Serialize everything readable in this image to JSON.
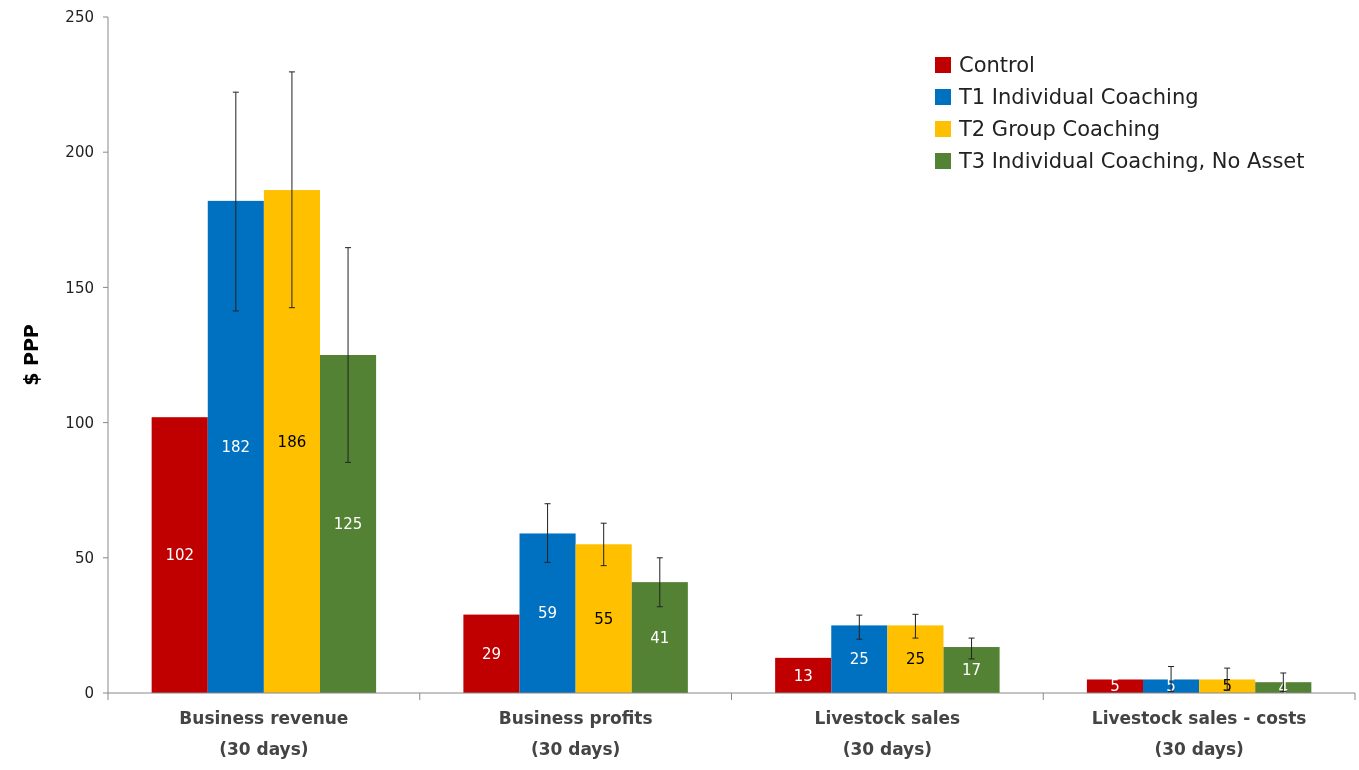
{
  "chart_data": {
    "type": "bar",
    "ylabel": "$ PPP",
    "categories": [
      "Business revenue\n(30 days)",
      "Business profits\n(30 days)",
      "Livestock sales\n(30 days)",
      "Livestock sales - costs\n(30 days)"
    ],
    "ylim": [
      0,
      250
    ],
    "yticks": [
      0,
      50,
      100,
      150,
      200,
      250
    ],
    "grid": false,
    "legend": "top right",
    "data_labels": true,
    "series": [
      {
        "name": "Control",
        "color": "#c00000",
        "values": [
          102,
          29,
          13,
          5
        ]
      },
      {
        "name": "T1 Individual Coaching",
        "color": "#0070c0",
        "values": [
          182,
          59,
          25,
          5
        ],
        "errors": [
          [
            141.3,
            222.2
          ],
          [
            48.3,
            70
          ],
          [
            19.9,
            28.8
          ],
          [
            0.5,
            9.8
          ]
        ]
      },
      {
        "name": "T2 Group Coaching",
        "color": "#ffc000",
        "values": [
          186,
          55,
          25,
          5
        ],
        "errors": [
          [
            142.5,
            229.7
          ],
          [
            47.1,
            62.8
          ],
          [
            20.3,
            29.1
          ],
          [
            1,
            9.2
          ]
        ]
      },
      {
        "name": "T3 Individual Coaching, No Asset",
        "color": "#548235",
        "values": [
          125,
          41,
          17,
          4
        ],
        "errors": [
          [
            85.3,
            164.7
          ],
          [
            31.9,
            50
          ],
          [
            12.6,
            20.3
          ],
          [
            0.5,
            7.4
          ]
        ]
      }
    ]
  }
}
